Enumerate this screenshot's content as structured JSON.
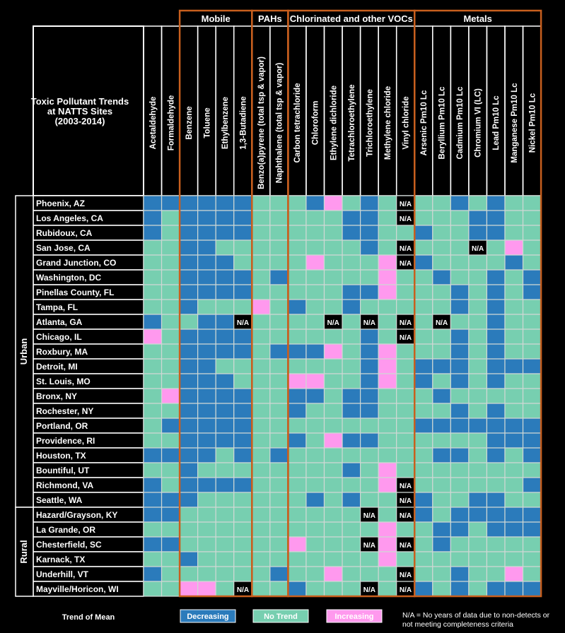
{
  "chart_data": {
    "type": "heatmap",
    "title": "Toxic Pollutant Trends at NATTS Sites (2003-2014)",
    "title_lines": [
      "Toxic Pollutant Trends",
      "at NATTS Sites",
      "(2003-2014)"
    ],
    "groups": [
      {
        "name": "",
        "columns": [
          "Acetaldehyde",
          "Formaldehyde"
        ]
      },
      {
        "name": "Mobile",
        "columns": [
          "Benzene",
          "Toluene",
          "Ethylbenzene",
          "1,3-Butadiene"
        ]
      },
      {
        "name": "PAHs",
        "columns": [
          "Benzo(a)pyrene (total tsp & vapor)",
          "Naphthalene (total tsp & vapor)"
        ]
      },
      {
        "name": "Chlorinated and other VOCs",
        "columns": [
          "Carbon tetrachloride",
          "Chloroform",
          "Ethylene dichloride",
          "Tetrachloroethylene",
          "Trichloroethylene",
          "Methylene chloride",
          "Vinyl chloride"
        ]
      },
      {
        "name": "Metals",
        "columns": [
          "Arsenic Pm10 Lc",
          "Beryllium Pm10 Lc",
          "Cadmium Pm10 Lc",
          "Chromium VI (LC)",
          "Lead Pm10 Lc",
          "Manganese Pm10 Lc",
          "Nickel Pm10 Lc"
        ]
      }
    ],
    "site_groups": [
      {
        "name": "Urban",
        "count": 21
      },
      {
        "name": "Rural",
        "count": 6
      }
    ],
    "sites": [
      "Phoenix, AZ",
      "Los Angeles, CA",
      "Rubidoux, CA",
      "San Jose, CA",
      "Grand Junction, CO",
      "Washington, DC",
      "Pinellas County, FL",
      "Tampa, FL",
      "Atlanta, GA",
      "Chicago, IL",
      "Roxbury, MA",
      "Detroit, MI",
      "St. Louis, MO",
      "Bronx, NY",
      "Rochester, NY",
      "Portland, OR",
      "Providence, RI",
      "Houston, TX",
      "Bountiful, UT",
      "Richmond, VA",
      "Seattle, WA",
      "Hazard/Grayson, KY",
      "La Grande, OR",
      "Chesterfield, SC",
      "Karnack, TX",
      "Underhill, VT",
      "Mayville/Horicon, WI"
    ],
    "value_codes": {
      "D": "Decreasing",
      "N": "No Trend",
      "I": "Increasing",
      "X": "N/A"
    },
    "values": [
      "DDDDDDNNNDINDNXNNDNDNN",
      "DNDDDDNNNNNDDNXNNNDDNN",
      "DNDDDDNNNNNDDNNDNNDDNN",
      "NNDDNNNNNNNNDNXNNNXNIN",
      "NNDDDNNNNINNNIXDNNNNDN",
      "NNDDDDNDNNNNNINNDNNDND",
      "NNDDDDNNNNNDDINNNDNDND",
      "NNDNNNINDNNDNNNNNDNDNN",
      "DNNDDXNNNNXNXNXNXNNDNN",
      "INDDDDNNNNNNDNXNNDNDNN",
      "NNDDDDNDDDINDINNNDNDNN",
      "NNDDNNNNNNNNDINDDDNDDD",
      "NNDDDNNNIINNDINDNDNDNN",
      "NIDDDDNNDDNDDNNNDNNNNN",
      "NNDDDDNNDNNDDNNNNDNDNN",
      "NDDDDDNNNNNNNNNDDDDDDD",
      "NNDDDDNNDNIDDNNNNNNDDD",
      "DDDDNDNDNNNNNNNNDDNDND",
      "NNDNNNNNNNNDNINNNNNNNN",
      "DNDDDDNNNNNNNIXNNNNNND",
      "DDDNNNNNNDNDNNXDNNDDNN",
      "DDNNNNNNNNNNXNXDNDDDDD",
      "NNNNNNNNNNNNNINNDDNDDD",
      "DDNNNNNNINNNXIXNDNNNNN",
      "NNDNNNNNNNNNNINNNNNNNN",
      "DNNNNNNDNNINNNXNNDNNIN",
      "NNIINXNNDNNNXNXDNDNDDD"
    ],
    "colors": {
      "D": "#2b7bbb",
      "N": "#77cfb0",
      "I": "#ff99ee",
      "X": "#000000"
    },
    "legend": {
      "title": "Trend of Mean",
      "items": [
        "Decreasing",
        "No Trend",
        "Increasing"
      ],
      "na_code": "N/A",
      "na_note_lines": [
        "N/A = No years of data due to non-detects or",
        "not meeting completeness criteria"
      ]
    }
  }
}
